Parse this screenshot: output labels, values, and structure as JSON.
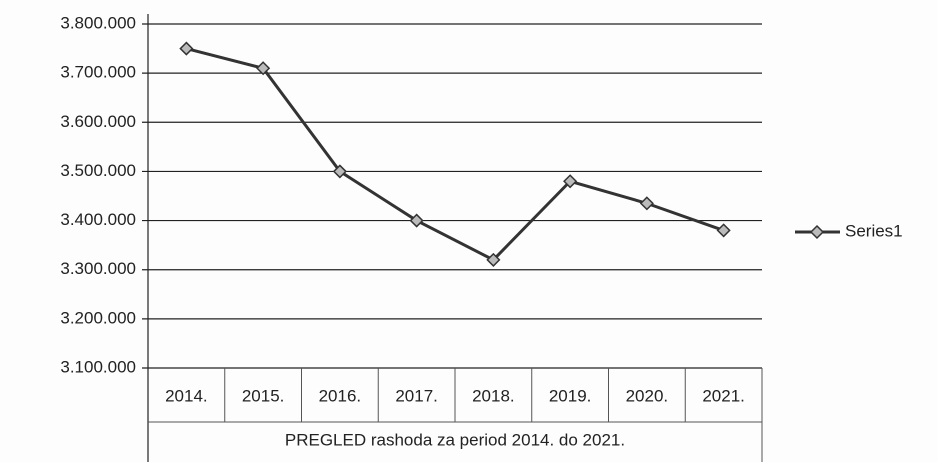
{
  "chart_data": {
    "type": "line",
    "x_label": "PREGLED rashoda za period 2014. do 2021.",
    "categories": [
      "2014.",
      "2015.",
      "2016.",
      "2017.",
      "2018.",
      "2019.",
      "2020.",
      "2021."
    ],
    "series": [
      {
        "name": "Series1",
        "color": "#333333",
        "values": [
          3750000,
          3710000,
          3500000,
          3400000,
          3320000,
          3480000,
          3435000,
          3380000
        ]
      }
    ],
    "ylim": [
      3100000,
      3800000
    ],
    "yticks": [
      {
        "value": 3100000,
        "label": "3.100.000"
      },
      {
        "value": 3200000,
        "label": "3.200.000"
      },
      {
        "value": 3300000,
        "label": "3.300.000"
      },
      {
        "value": 3400000,
        "label": "3.400.000"
      },
      {
        "value": 3500000,
        "label": "3.500.000"
      },
      {
        "value": 3600000,
        "label": "3.600.000"
      },
      {
        "value": 3700000,
        "label": "3.700.000"
      },
      {
        "value": 3800000,
        "label": "3.800.000"
      }
    ],
    "grid": true,
    "legend": "right"
  }
}
